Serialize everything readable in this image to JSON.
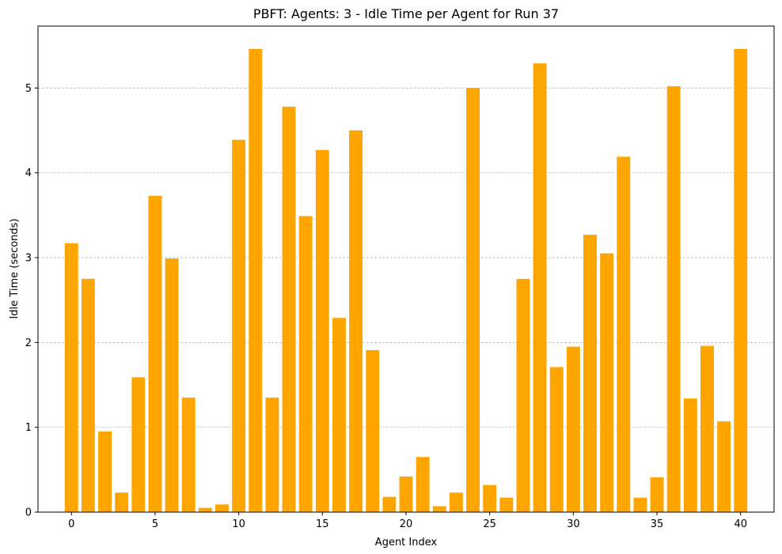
{
  "chart_data": {
    "type": "bar",
    "title": "PBFT: Agents: 3 - Idle Time per Agent for Run 37",
    "xlabel": "Agent Index",
    "ylabel": "Idle Time (seconds)",
    "x": [
      0,
      1,
      2,
      3,
      4,
      5,
      6,
      7,
      8,
      9,
      10,
      11,
      12,
      13,
      14,
      15,
      16,
      17,
      18,
      19,
      20,
      21,
      22,
      23,
      24,
      25,
      26,
      27,
      28,
      29,
      30,
      31,
      32,
      33,
      34,
      35,
      36,
      37,
      38,
      39,
      40
    ],
    "values": [
      3.17,
      2.75,
      0.95,
      0.23,
      1.59,
      3.73,
      2.99,
      1.35,
      0.05,
      0.09,
      4.39,
      5.46,
      1.35,
      4.78,
      3.49,
      4.27,
      2.29,
      4.5,
      1.91,
      0.18,
      0.42,
      0.65,
      0.07,
      0.23,
      5.0,
      0.32,
      0.17,
      2.75,
      5.29,
      1.71,
      1.95,
      3.27,
      3.05,
      4.19,
      0.17,
      0.41,
      5.02,
      1.34,
      1.96,
      1.07,
      5.46
    ],
    "xlim": [
      -2.0,
      42.0
    ],
    "ylim": [
      0,
      5.73
    ],
    "xticks": [
      0,
      5,
      10,
      15,
      20,
      25,
      30,
      35,
      40
    ],
    "yticks": [
      0,
      1,
      2,
      3,
      4,
      5
    ],
    "bar_color": "#ffa500",
    "grid": "horizontal dashed",
    "grid_color": "#b0b0b0"
  }
}
